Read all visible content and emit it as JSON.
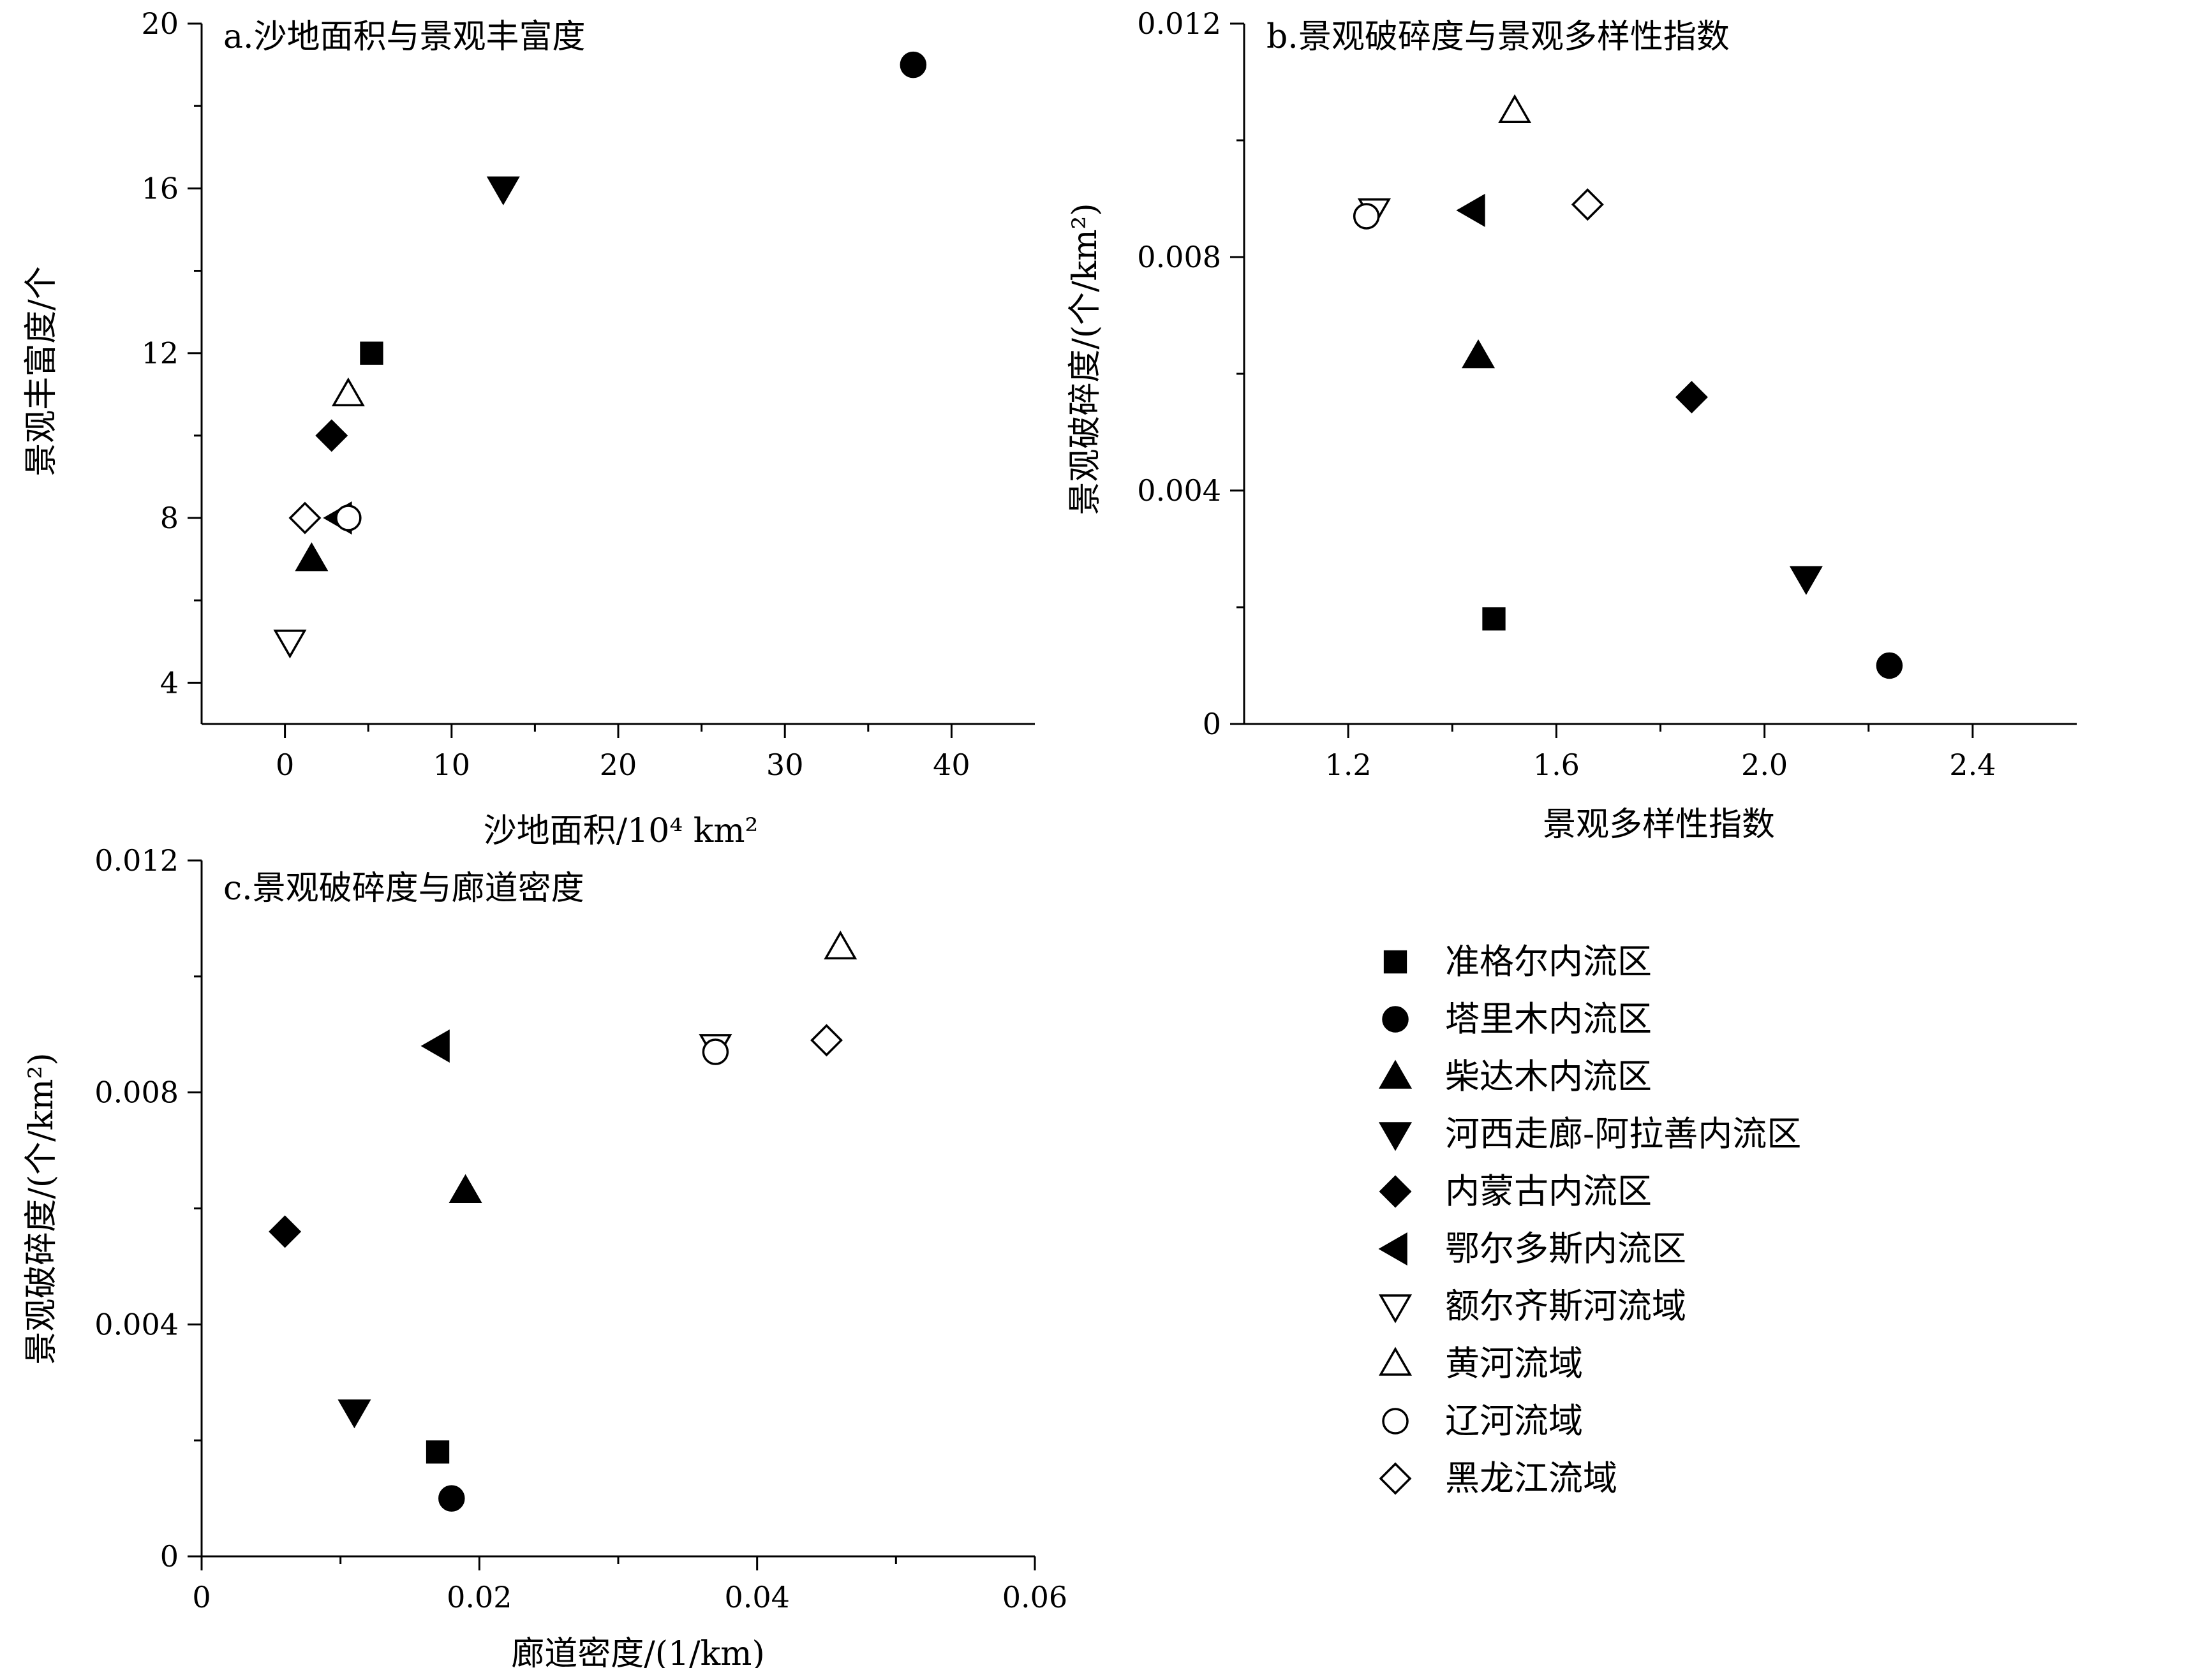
{
  "chart_data": [
    {
      "type": "scatter",
      "title": "a.沙地面积与景观丰富度",
      "xlabel": "沙地面积/10⁴ km²",
      "ylabel": "景观丰富度/个",
      "xlim": [
        -5,
        45
      ],
      "ylim": [
        3,
        20
      ],
      "xticks": [
        0,
        10,
        20,
        30,
        40
      ],
      "yticks": [
        4,
        8,
        12,
        16,
        20
      ],
      "xtick_labels": [
        "0",
        "10",
        "20",
        "30",
        "40"
      ],
      "ytick_labels": [
        "4",
        "8",
        "12",
        "16",
        "20"
      ],
      "grid": false,
      "points": [
        {
          "region": 0,
          "x": 5.2,
          "y": 12
        },
        {
          "region": 1,
          "x": 37.7,
          "y": 19
        },
        {
          "region": 2,
          "x": 1.6,
          "y": 7
        },
        {
          "region": 3,
          "x": 13.1,
          "y": 16
        },
        {
          "region": 4,
          "x": 2.8,
          "y": 10
        },
        {
          "region": 5,
          "x": 3.3,
          "y": 8
        },
        {
          "region": 6,
          "x": 0.3,
          "y": 5
        },
        {
          "region": 7,
          "x": 3.8,
          "y": 11
        },
        {
          "region": 8,
          "x": 3.8,
          "y": 8
        },
        {
          "region": 9,
          "x": 1.2,
          "y": 8
        }
      ]
    },
    {
      "type": "scatter",
      "title": "b.景观破碎度与景观多样性指数",
      "xlabel": "景观多样性指数",
      "ylabel": "景观破碎度/(个/km²)",
      "xlim": [
        1.0,
        2.6
      ],
      "ylim": [
        0,
        0.012
      ],
      "xticks": [
        1.2,
        1.6,
        2.0,
        2.4
      ],
      "yticks": [
        0,
        0.004,
        0.008,
        0.012
      ],
      "xtick_labels": [
        "1.2",
        "1.6",
        "2.0",
        "2.4"
      ],
      "ytick_labels": [
        "0",
        "0.004",
        "0.008",
        "0.012"
      ],
      "grid": false,
      "points": [
        {
          "region": 0,
          "x": 1.48,
          "y": 0.0018
        },
        {
          "region": 1,
          "x": 2.24,
          "y": 0.001
        },
        {
          "region": 2,
          "x": 1.45,
          "y": 0.0063
        },
        {
          "region": 3,
          "x": 2.08,
          "y": 0.0025
        },
        {
          "region": 4,
          "x": 1.86,
          "y": 0.0056
        },
        {
          "region": 5,
          "x": 1.44,
          "y": 0.0088
        },
        {
          "region": 6,
          "x": 1.25,
          "y": 0.0088
        },
        {
          "region": 7,
          "x": 1.52,
          "y": 0.0105
        },
        {
          "region": 8,
          "x": 1.235,
          "y": 0.0087
        },
        {
          "region": 9,
          "x": 1.66,
          "y": 0.0089
        }
      ]
    },
    {
      "type": "scatter",
      "title": "c.景观破碎度与廊道密度",
      "xlabel": "廊道密度/(1/km)",
      "ylabel": "景观破碎度/(个/km²)",
      "xlim": [
        0,
        0.06
      ],
      "ylim": [
        0,
        0.012
      ],
      "xticks": [
        0,
        0.02,
        0.04,
        0.06
      ],
      "yticks": [
        0,
        0.004,
        0.008,
        0.012
      ],
      "xtick_labels": [
        "0",
        "0.02",
        "0.04",
        "0.06"
      ],
      "ytick_labels": [
        "0",
        "0.004",
        "0.008",
        "0.012"
      ],
      "grid": false,
      "points": [
        {
          "region": 0,
          "x": 0.017,
          "y": 0.0018
        },
        {
          "region": 1,
          "x": 0.018,
          "y": 0.001
        },
        {
          "region": 2,
          "x": 0.019,
          "y": 0.0063
        },
        {
          "region": 3,
          "x": 0.011,
          "y": 0.0025
        },
        {
          "region": 4,
          "x": 0.006,
          "y": 0.0056
        },
        {
          "region": 5,
          "x": 0.017,
          "y": 0.0088
        },
        {
          "region": 6,
          "x": 0.037,
          "y": 0.0088
        },
        {
          "region": 7,
          "x": 0.046,
          "y": 0.0105
        },
        {
          "region": 8,
          "x": 0.037,
          "y": 0.0087
        },
        {
          "region": 9,
          "x": 0.045,
          "y": 0.0089
        }
      ]
    }
  ],
  "legend": {
    "placement": "bottom-right",
    "entries": [
      {
        "label": "准格尔内流区",
        "marker": "square-filled"
      },
      {
        "label": "塔里木内流区",
        "marker": "circle-filled"
      },
      {
        "label": "柴达木内流区",
        "marker": "triangle-up-filled"
      },
      {
        "label": "河西走廊-阿拉善内流区",
        "marker": "triangle-down-filled"
      },
      {
        "label": "内蒙古内流区",
        "marker": "diamond-filled"
      },
      {
        "label": "鄂尔多斯内流区",
        "marker": "triangle-left-filled"
      },
      {
        "label": "额尔齐斯河流域",
        "marker": "triangle-down-open"
      },
      {
        "label": "黄河流域",
        "marker": "triangle-up-open"
      },
      {
        "label": "辽河流域",
        "marker": "circle-open"
      },
      {
        "label": "黑龙江流域",
        "marker": "diamond-open"
      }
    ]
  }
}
